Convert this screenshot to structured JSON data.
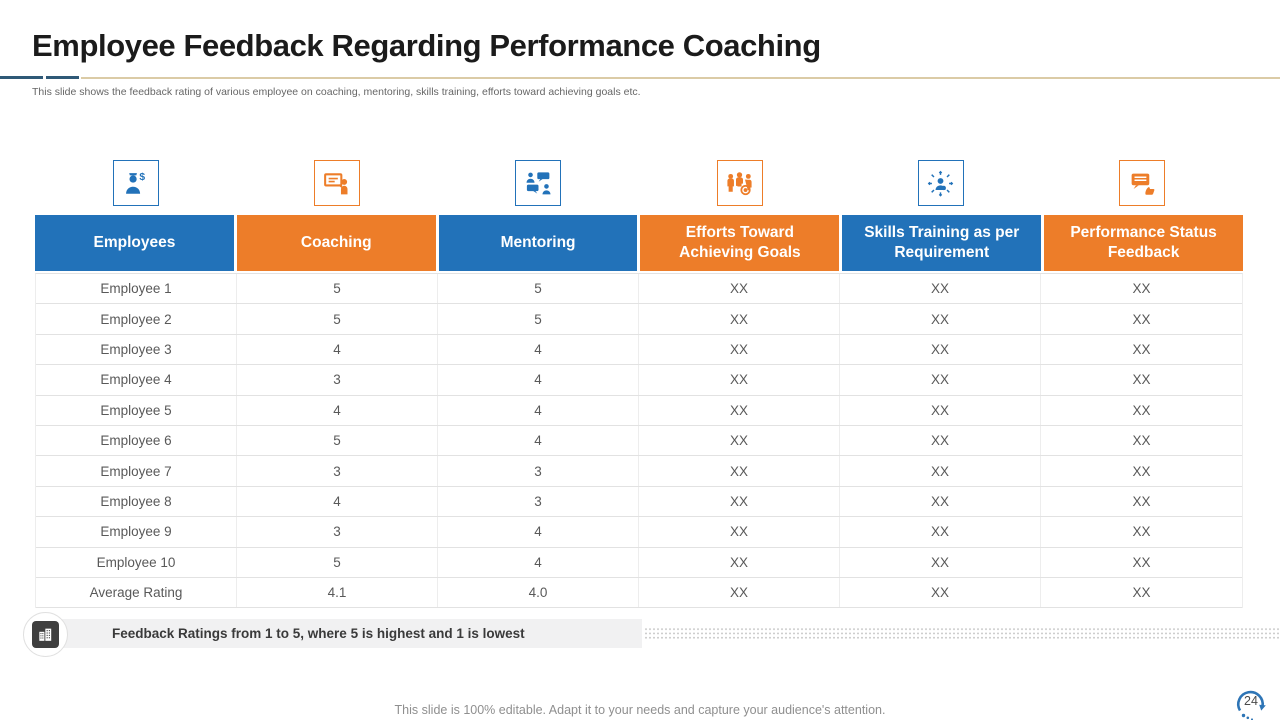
{
  "slide": {
    "title": "Employee Feedback Regarding Performance Coaching",
    "subtitle": "This slide shows the feedback rating of various employee on coaching, mentoring, skills training, efforts toward achieving goals etc.",
    "footer": "This slide is 100% editable. Adapt it to your needs and capture your audience's attention.",
    "page_number": "24"
  },
  "note_bar": {
    "icon": "buildings-icon",
    "text": "Feedback Ratings from 1 to 5, where 5 is highest and 1 is lowest"
  },
  "colors": {
    "blue": "#2272b9",
    "orange": "#ed7d29",
    "underline_blue": "#2f5977",
    "underline_tan": "#dbcba6",
    "header_text": "#ffffff",
    "body_text": "#595959",
    "badge_blue": "#2e75b6"
  },
  "table": {
    "columns": [
      {
        "label": "Employees",
        "color": "blue",
        "icon": "employee-dollar-icon"
      },
      {
        "label": "Coaching",
        "color": "orange",
        "icon": "coaching-presentation-icon"
      },
      {
        "label": "Mentoring",
        "color": "blue",
        "icon": "mentoring-chat-icon"
      },
      {
        "label": "Efforts Toward Achieving Goals",
        "color": "orange",
        "icon": "team-goal-medal-icon"
      },
      {
        "label": "Skills Training as per Requirement",
        "color": "blue",
        "icon": "skills-direction-icon"
      },
      {
        "label": "Performance Status Feedback",
        "color": "orange",
        "icon": "feedback-thumbs-up-icon"
      }
    ],
    "rows": [
      {
        "label": "Employee 1",
        "values": [
          "5",
          "5",
          "XX",
          "XX",
          "XX"
        ]
      },
      {
        "label": "Employee 2",
        "values": [
          "5",
          "5",
          "XX",
          "XX",
          "XX"
        ]
      },
      {
        "label": "Employee 3",
        "values": [
          "4",
          "4",
          "XX",
          "XX",
          "XX"
        ]
      },
      {
        "label": "Employee 4",
        "values": [
          "3",
          "4",
          "XX",
          "XX",
          "XX"
        ]
      },
      {
        "label": "Employee 5",
        "values": [
          "4",
          "4",
          "XX",
          "XX",
          "XX"
        ]
      },
      {
        "label": "Employee 6",
        "values": [
          "5",
          "4",
          "XX",
          "XX",
          "XX"
        ]
      },
      {
        "label": "Employee 7",
        "values": [
          "3",
          "3",
          "XX",
          "XX",
          "XX"
        ]
      },
      {
        "label": "Employee 8",
        "values": [
          "4",
          "3",
          "XX",
          "XX",
          "XX"
        ]
      },
      {
        "label": "Employee 9",
        "values": [
          "3",
          "4",
          "XX",
          "XX",
          "XX"
        ]
      },
      {
        "label": "Employee 10",
        "values": [
          "5",
          "4",
          "XX",
          "XX",
          "XX"
        ]
      },
      {
        "label": "Average Rating",
        "values": [
          "4.1",
          "4.0",
          "XX",
          "XX",
          "XX"
        ]
      }
    ]
  }
}
